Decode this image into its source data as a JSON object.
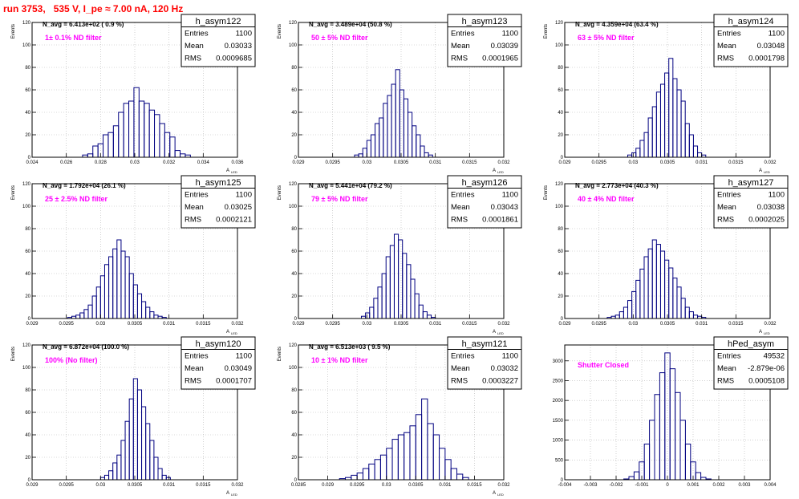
{
  "page": {
    "title": "run 3753,   535 V, I_pe ≈ 7.00 nA, 120 Hz"
  },
  "chart_data": [
    {
      "type": "bar",
      "name": "h_asym122",
      "stats": {
        "entries_label": "Entries",
        "entries": "1100",
        "mean_label": "Mean",
        "mean": "0.03033",
        "rms_label": "RMS",
        "rms": "0.0009685"
      },
      "navg": "N_avg = 6.413e+02 ( 0.9 %)",
      "filter_label": "1± 0.1% ND filter",
      "xlabel": "A",
      "xlabel_sub": "LED",
      "ylabel": "Events",
      "xlim": [
        0.024,
        0.036
      ],
      "ylim": [
        0,
        120
      ],
      "x_ticks": [
        "0.024",
        "0.026",
        "0.028",
        "0.03",
        "0.032",
        "0.034",
        "0.036"
      ],
      "y_ticks": [
        "0",
        "20",
        "40",
        "60",
        "80",
        "100",
        "120"
      ],
      "x": [
        0.0271,
        0.0274,
        0.0277,
        0.028,
        0.0283,
        0.0286,
        0.0289,
        0.0292,
        0.0295,
        0.0298,
        0.0301,
        0.0304,
        0.0307,
        0.031,
        0.0313,
        0.0316,
        0.0319,
        0.0322,
        0.0325,
        0.0328,
        0.0331
      ],
      "values": [
        2,
        3,
        10,
        12,
        20,
        22,
        28,
        40,
        48,
        50,
        62,
        50,
        48,
        42,
        38,
        30,
        22,
        18,
        6,
        3,
        2
      ]
    },
    {
      "type": "bar",
      "name": "h_asym123",
      "stats": {
        "entries_label": "Entries",
        "entries": "1100",
        "mean_label": "Mean",
        "mean": "0.03039",
        "rms_label": "RMS",
        "rms": "0.0001965"
      },
      "navg": "N_avg = 3.489e+04 (50.8 %)",
      "filter_label": "50 ± 5% ND filter",
      "xlabel": "A",
      "xlabel_sub": "LED",
      "ylabel": "Events",
      "xlim": [
        0.029,
        0.032
      ],
      "ylim": [
        0,
        120
      ],
      "x_ticks": [
        "0.029",
        "0.0295",
        "0.03",
        "0.0305",
        "0.031",
        "0.0315",
        "0.032"
      ],
      "y_ticks": [
        "0",
        "20",
        "40",
        "60",
        "80",
        "100",
        "120"
      ],
      "x": [
        0.02985,
        0.02991,
        0.02997,
        0.03003,
        0.03009,
        0.03015,
        0.03021,
        0.03027,
        0.03033,
        0.03039,
        0.03045,
        0.03051,
        0.03057,
        0.03063,
        0.03069,
        0.03075,
        0.03081,
        0.03087,
        0.03093
      ],
      "values": [
        2,
        3,
        8,
        15,
        20,
        30,
        35,
        48,
        55,
        65,
        78,
        60,
        52,
        40,
        28,
        20,
        10,
        4,
        2
      ]
    },
    {
      "type": "bar",
      "name": "h_asym124",
      "stats": {
        "entries_label": "Entries",
        "entries": "1100",
        "mean_label": "Mean",
        "mean": "0.03048",
        "rms_label": "RMS",
        "rms": "0.0001798"
      },
      "navg": "N_avg = 4.359e+04 (63.4 %)",
      "filter_label": "63 ± 5% ND filter",
      "xlabel": "A",
      "xlabel_sub": "LED",
      "ylabel": "Events",
      "xlim": [
        0.029,
        0.032
      ],
      "ylim": [
        0,
        120
      ],
      "x_ticks": [
        "0.029",
        "0.0295",
        "0.03",
        "0.0305",
        "0.031",
        "0.0315",
        "0.032"
      ],
      "y_ticks": [
        "0",
        "20",
        "40",
        "60",
        "80",
        "100",
        "120"
      ],
      "x": [
        0.02995,
        0.03001,
        0.03007,
        0.03013,
        0.03019,
        0.03025,
        0.03031,
        0.03037,
        0.03043,
        0.03049,
        0.03055,
        0.03061,
        0.03067,
        0.03073,
        0.03079,
        0.03085,
        0.03091,
        0.03097,
        0.03103
      ],
      "values": [
        2,
        4,
        8,
        15,
        22,
        35,
        45,
        58,
        65,
        75,
        88,
        70,
        60,
        50,
        30,
        20,
        10,
        4,
        2
      ]
    },
    {
      "type": "bar",
      "name": "h_asym125",
      "stats": {
        "entries_label": "Entries",
        "entries": "1100",
        "mean_label": "Mean",
        "mean": "0.03025",
        "rms_label": "RMS",
        "rms": "0.0002121"
      },
      "navg": "N_avg = 1.792e+04 (26.1 %)",
      "filter_label": "25 ± 2.5% ND filter",
      "xlabel": "A",
      "xlabel_sub": "LED",
      "ylabel": "Events",
      "xlim": [
        0.029,
        0.032
      ],
      "ylim": [
        0,
        120
      ],
      "x_ticks": [
        "0.029",
        "0.0295",
        "0.03",
        "0.0305",
        "0.031",
        "0.0315",
        "0.032"
      ],
      "y_ticks": [
        "0",
        "20",
        "40",
        "60",
        "80",
        "100",
        "120"
      ],
      "x": [
        0.02955,
        0.02961,
        0.02967,
        0.02973,
        0.02979,
        0.02985,
        0.02991,
        0.02997,
        0.03003,
        0.03009,
        0.03015,
        0.03021,
        0.03027,
        0.03033,
        0.03039,
        0.03045,
        0.03051,
        0.03057,
        0.03063,
        0.03069,
        0.03075,
        0.03081,
        0.03087,
        0.03093
      ],
      "values": [
        1,
        2,
        3,
        5,
        8,
        12,
        20,
        28,
        38,
        48,
        55,
        62,
        70,
        60,
        55,
        40,
        30,
        22,
        15,
        10,
        6,
        3,
        2,
        1
      ]
    },
    {
      "type": "bar",
      "name": "h_asym126",
      "stats": {
        "entries_label": "Entries",
        "entries": "1100",
        "mean_label": "Mean",
        "mean": "0.03043",
        "rms_label": "RMS",
        "rms": "0.0001861"
      },
      "navg": "N_avg = 5.441e+04 (79.2 %)",
      "filter_label": "79 ± 5% ND filter",
      "xlabel": "A",
      "xlabel_sub": "LED",
      "ylabel": "Events",
      "xlim": [
        0.029,
        0.032
      ],
      "ylim": [
        0,
        120
      ],
      "x_ticks": [
        "0.029",
        "0.0295",
        "0.03",
        "0.0305",
        "0.031",
        "0.0315",
        "0.032"
      ],
      "y_ticks": [
        "0",
        "20",
        "40",
        "60",
        "80",
        "100",
        "120"
      ],
      "x": [
        0.02995,
        0.03001,
        0.03007,
        0.03013,
        0.03019,
        0.03025,
        0.03031,
        0.03037,
        0.03043,
        0.03049,
        0.03055,
        0.03061,
        0.03067,
        0.03073,
        0.03079,
        0.03085,
        0.03091,
        0.03097
      ],
      "values": [
        2,
        5,
        10,
        18,
        28,
        40,
        55,
        65,
        75,
        70,
        58,
        48,
        35,
        22,
        12,
        6,
        3,
        1
      ]
    },
    {
      "type": "bar",
      "name": "h_asym127",
      "stats": {
        "entries_label": "Entries",
        "entries": "1100",
        "mean_label": "Mean",
        "mean": "0.03038",
        "rms_label": "RMS",
        "rms": "0.0002025"
      },
      "navg": "N_avg = 2.773e+04 (40.3 %)",
      "filter_label": "40 ± 4% ND filter",
      "xlabel": "A",
      "xlabel_sub": "LED",
      "ylabel": "Events",
      "xlim": [
        0.029,
        0.032
      ],
      "ylim": [
        0,
        120
      ],
      "x_ticks": [
        "0.029",
        "0.0295",
        "0.03",
        "0.0305",
        "0.031",
        "0.0315",
        "0.032"
      ],
      "y_ticks": [
        "0",
        "20",
        "40",
        "60",
        "80",
        "100",
        "120"
      ],
      "x": [
        0.02965,
        0.02971,
        0.02977,
        0.02983,
        0.02989,
        0.02995,
        0.03001,
        0.03007,
        0.03013,
        0.03019,
        0.03025,
        0.03031,
        0.03037,
        0.03043,
        0.03049,
        0.03055,
        0.03061,
        0.03067,
        0.03073,
        0.03079,
        0.03085,
        0.03091,
        0.03097,
        0.03103
      ],
      "values": [
        1,
        2,
        3,
        6,
        10,
        16,
        24,
        34,
        44,
        55,
        62,
        70,
        66,
        60,
        52,
        45,
        36,
        28,
        18,
        10,
        6,
        3,
        2,
        1
      ]
    },
    {
      "type": "bar",
      "name": "h_asym120",
      "stats": {
        "entries_label": "Entries",
        "entries": "1100",
        "mean_label": "Mean",
        "mean": "0.03049",
        "rms_label": "RMS",
        "rms": "0.0001707"
      },
      "navg": "N_avg = 6.872e+04 (100.0 %)",
      "filter_label": "100% (No filter)",
      "xlabel": "A",
      "xlabel_sub": "LED",
      "ylabel": "Events",
      "xlim": [
        0.029,
        0.032
      ],
      "ylim": [
        0,
        120
      ],
      "x_ticks": [
        "0.029",
        "0.0295",
        "0.03",
        "0.0305",
        "0.031",
        "0.0315",
        "0.032"
      ],
      "y_ticks": [
        "0",
        "20",
        "40",
        "60",
        "80",
        "100",
        "120"
      ],
      "x": [
        0.03003,
        0.03009,
        0.03015,
        0.03021,
        0.03027,
        0.03033,
        0.03039,
        0.03045,
        0.03051,
        0.03057,
        0.03063,
        0.03069,
        0.03075,
        0.03081,
        0.03087,
        0.03093,
        0.03099
      ],
      "values": [
        2,
        4,
        8,
        15,
        22,
        35,
        52,
        72,
        90,
        80,
        65,
        50,
        35,
        20,
        10,
        4,
        2
      ]
    },
    {
      "type": "bar",
      "name": "h_asym121",
      "stats": {
        "entries_label": "Entries",
        "entries": "1100",
        "mean_label": "Mean",
        "mean": "0.03032",
        "rms_label": "RMS",
        "rms": "0.0003227"
      },
      "navg": "N_avg = 6.513e+03 ( 9.5 %)",
      "filter_label": "10 ± 1% ND filter",
      "xlabel": "A",
      "xlabel_sub": "LED",
      "ylabel": "Events",
      "xlim": [
        0.0285,
        0.032
      ],
      "ylim": [
        0,
        120
      ],
      "x_ticks": [
        "0.0285",
        "0.029",
        "0.0295",
        "0.03",
        "0.0305",
        "0.031",
        "0.0315",
        "0.032"
      ],
      "y_ticks": [
        "0",
        "20",
        "40",
        "60",
        "80",
        "100",
        "120"
      ],
      "x": [
        0.02925,
        0.02935,
        0.02945,
        0.02955,
        0.02965,
        0.02975,
        0.02985,
        0.02995,
        0.03005,
        0.03015,
        0.03025,
        0.03035,
        0.03045,
        0.03055,
        0.03065,
        0.03075,
        0.03085,
        0.03095,
        0.03105,
        0.03115,
        0.03125,
        0.03135
      ],
      "values": [
        1,
        2,
        4,
        6,
        10,
        14,
        18,
        22,
        28,
        36,
        40,
        42,
        48,
        58,
        72,
        50,
        40,
        28,
        18,
        10,
        5,
        2
      ]
    },
    {
      "type": "bar",
      "name": "hPed_asym",
      "stats": {
        "entries_label": "Entries",
        "entries": "49532",
        "mean_label": "Mean",
        "mean": "-2.879e-06",
        "rms_label": "RMS",
        "rms": "0.0005108"
      },
      "navg": "",
      "filter_label": "Shutter Closed",
      "xlabel": "",
      "xlabel_sub": "",
      "ylabel": "",
      "xlim": [
        -0.004,
        0.004
      ],
      "ylim": [
        0,
        3400
      ],
      "x_ticks": [
        "-0.004",
        "-0.003",
        "-0.002",
        "-0.001",
        "0",
        "0.001",
        "0.002",
        "0.003",
        "0.004"
      ],
      "y_ticks": [
        "0",
        "500",
        "1000",
        "1500",
        "2000",
        "2500",
        "3000"
      ],
      "x": [
        -0.0016,
        -0.0014,
        -0.0012,
        -0.001,
        -0.0008,
        -0.0006,
        -0.0004,
        -0.0002,
        0.0,
        0.0002,
        0.0004,
        0.0006,
        0.0008,
        0.001,
        0.0012,
        0.0014,
        0.0016
      ],
      "values": [
        20,
        80,
        200,
        450,
        900,
        1500,
        2150,
        2700,
        3200,
        2800,
        2200,
        1500,
        900,
        450,
        180,
        60,
        20
      ]
    }
  ]
}
